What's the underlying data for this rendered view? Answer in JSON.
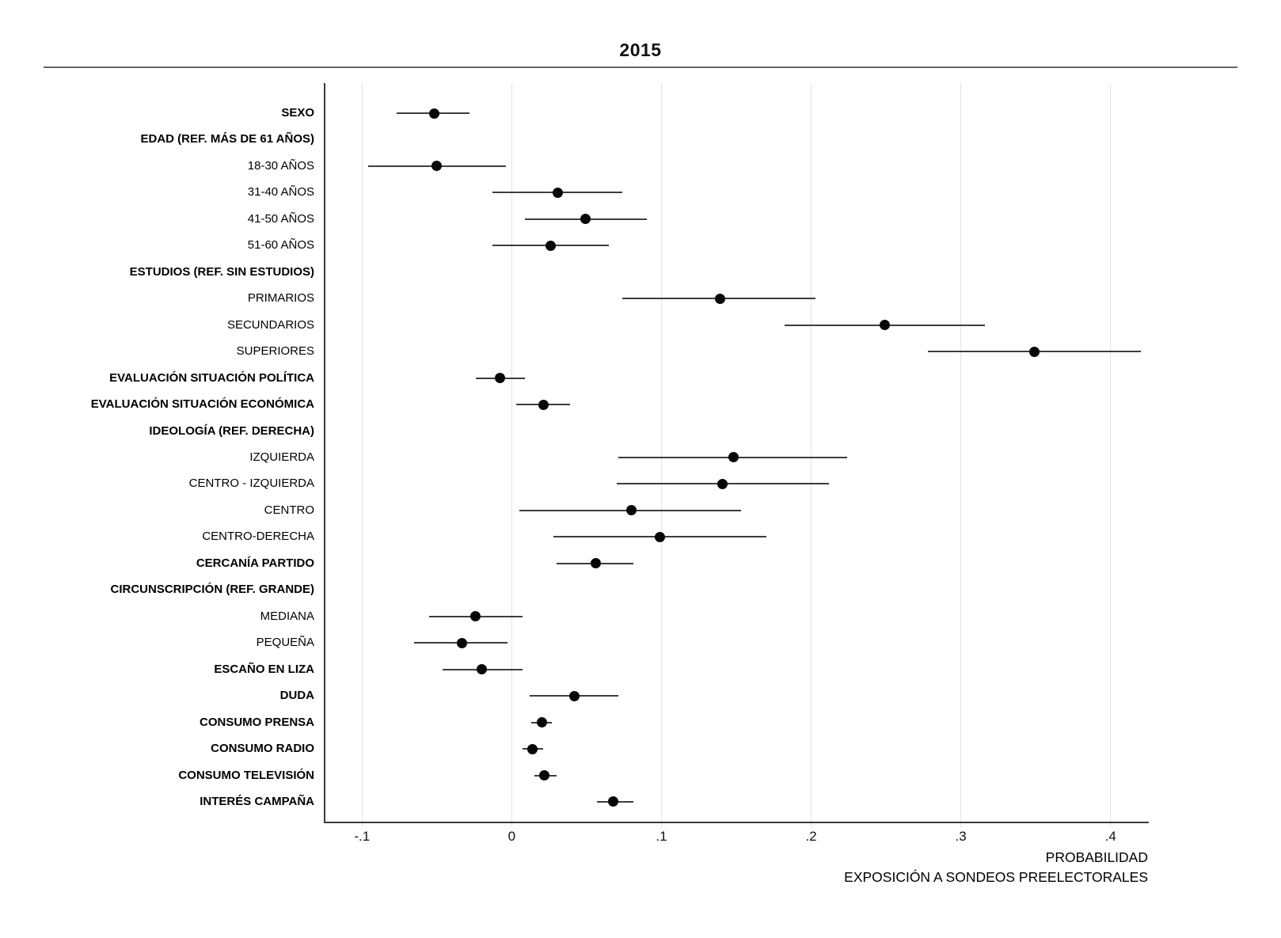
{
  "chart_data": {
    "type": "dot-whisker",
    "title": "2015",
    "xlabel_line1": "PROBABILIDAD",
    "xlabel_line2": "EXPOSICIÓN A SONDEOS PREELECTORALES",
    "xlim": [
      -0.125,
      0.425
    ],
    "grid": "vertical-only",
    "legend": "none",
    "point_color": "#070707",
    "ci_color": "#3d3d3d",
    "ticks": [
      {
        "value": -0.1,
        "label": "-.1"
      },
      {
        "value": 0,
        "label": "0"
      },
      {
        "value": 0.1,
        "label": ".1"
      },
      {
        "value": 0.2,
        "label": ".2"
      },
      {
        "value": 0.3,
        "label": ".3"
      },
      {
        "value": 0.4,
        "label": ".4"
      }
    ],
    "rows": [
      {
        "label": "SEXO",
        "bold": true,
        "estimate": -0.052,
        "ci_low": -0.077,
        "ci_high": -0.028
      },
      {
        "label": "EDAD (REF. MÁS DE 61 AÑOS)",
        "bold": true,
        "estimate": null,
        "ci_low": null,
        "ci_high": null
      },
      {
        "label": "18-30 AÑOS",
        "bold": false,
        "estimate": -0.05,
        "ci_low": -0.096,
        "ci_high": -0.004
      },
      {
        "label": "31-40 AÑOS",
        "bold": false,
        "estimate": 0.031,
        "ci_low": -0.013,
        "ci_high": 0.074
      },
      {
        "label": "41-50 AÑOS",
        "bold": false,
        "estimate": 0.049,
        "ci_low": 0.009,
        "ci_high": 0.09
      },
      {
        "label": "51-60 AÑOS",
        "bold": false,
        "estimate": 0.026,
        "ci_low": -0.013,
        "ci_high": 0.065
      },
      {
        "label": "ESTUDIOS (REF. SIN ESTUDIOS)",
        "bold": true,
        "estimate": null,
        "ci_low": null,
        "ci_high": null
      },
      {
        "label": "PRIMARIOS",
        "bold": false,
        "estimate": 0.139,
        "ci_low": 0.074,
        "ci_high": 0.203
      },
      {
        "label": "SECUNDARIOS",
        "bold": false,
        "estimate": 0.249,
        "ci_low": 0.182,
        "ci_high": 0.316
      },
      {
        "label": "SUPERIORES",
        "bold": false,
        "estimate": 0.349,
        "ci_low": 0.278,
        "ci_high": 0.42
      },
      {
        "label": "EVALUACIÓN SITUACIÓN POLÍTICA",
        "bold": true,
        "estimate": -0.008,
        "ci_low": -0.024,
        "ci_high": 0.009
      },
      {
        "label": "EVALUACIÓN SITUACIÓN ECONÓMICA",
        "bold": true,
        "estimate": 0.021,
        "ci_low": 0.003,
        "ci_high": 0.039
      },
      {
        "label": "IDEOLOGÍA (REF. DERECHA)",
        "bold": true,
        "estimate": null,
        "ci_low": null,
        "ci_high": null
      },
      {
        "label": "IZQUIERDA",
        "bold": false,
        "estimate": 0.148,
        "ci_low": 0.071,
        "ci_high": 0.224
      },
      {
        "label": "CENTRO - IZQUIERDA",
        "bold": false,
        "estimate": 0.141,
        "ci_low": 0.07,
        "ci_high": 0.212
      },
      {
        "label": "CENTRO",
        "bold": false,
        "estimate": 0.08,
        "ci_low": 0.005,
        "ci_high": 0.153
      },
      {
        "label": "CENTRO-DERECHA",
        "bold": false,
        "estimate": 0.099,
        "ci_low": 0.028,
        "ci_high": 0.17
      },
      {
        "label": "CERCANÍA PARTIDO",
        "bold": true,
        "estimate": 0.056,
        "ci_low": 0.03,
        "ci_high": 0.081
      },
      {
        "label": "CIRCUNSCRIPCIÓN (REF. GRANDE)",
        "bold": true,
        "estimate": null,
        "ci_low": null,
        "ci_high": null
      },
      {
        "label": "MEDIANA",
        "bold": false,
        "estimate": -0.024,
        "ci_low": -0.055,
        "ci_high": 0.007
      },
      {
        "label": "PEQUEÑA",
        "bold": false,
        "estimate": -0.033,
        "ci_low": -0.065,
        "ci_high": -0.003
      },
      {
        "label": "ESCAÑO EN LIZA",
        "bold": true,
        "estimate": -0.02,
        "ci_low": -0.046,
        "ci_high": 0.007
      },
      {
        "label": "DUDA",
        "bold": true,
        "estimate": 0.042,
        "ci_low": 0.012,
        "ci_high": 0.071
      },
      {
        "label": "CONSUMO PRENSA",
        "bold": true,
        "estimate": 0.02,
        "ci_low": 0.013,
        "ci_high": 0.027
      },
      {
        "label": "CONSUMO RADIO",
        "bold": true,
        "estimate": 0.014,
        "ci_low": 0.007,
        "ci_high": 0.021
      },
      {
        "label": "CONSUMO TELEVISIÓN",
        "bold": true,
        "estimate": 0.022,
        "ci_low": 0.015,
        "ci_high": 0.03
      },
      {
        "label": "INTERÉS CAMPAÑA",
        "bold": true,
        "estimate": 0.068,
        "ci_low": 0.057,
        "ci_high": 0.081
      }
    ]
  }
}
